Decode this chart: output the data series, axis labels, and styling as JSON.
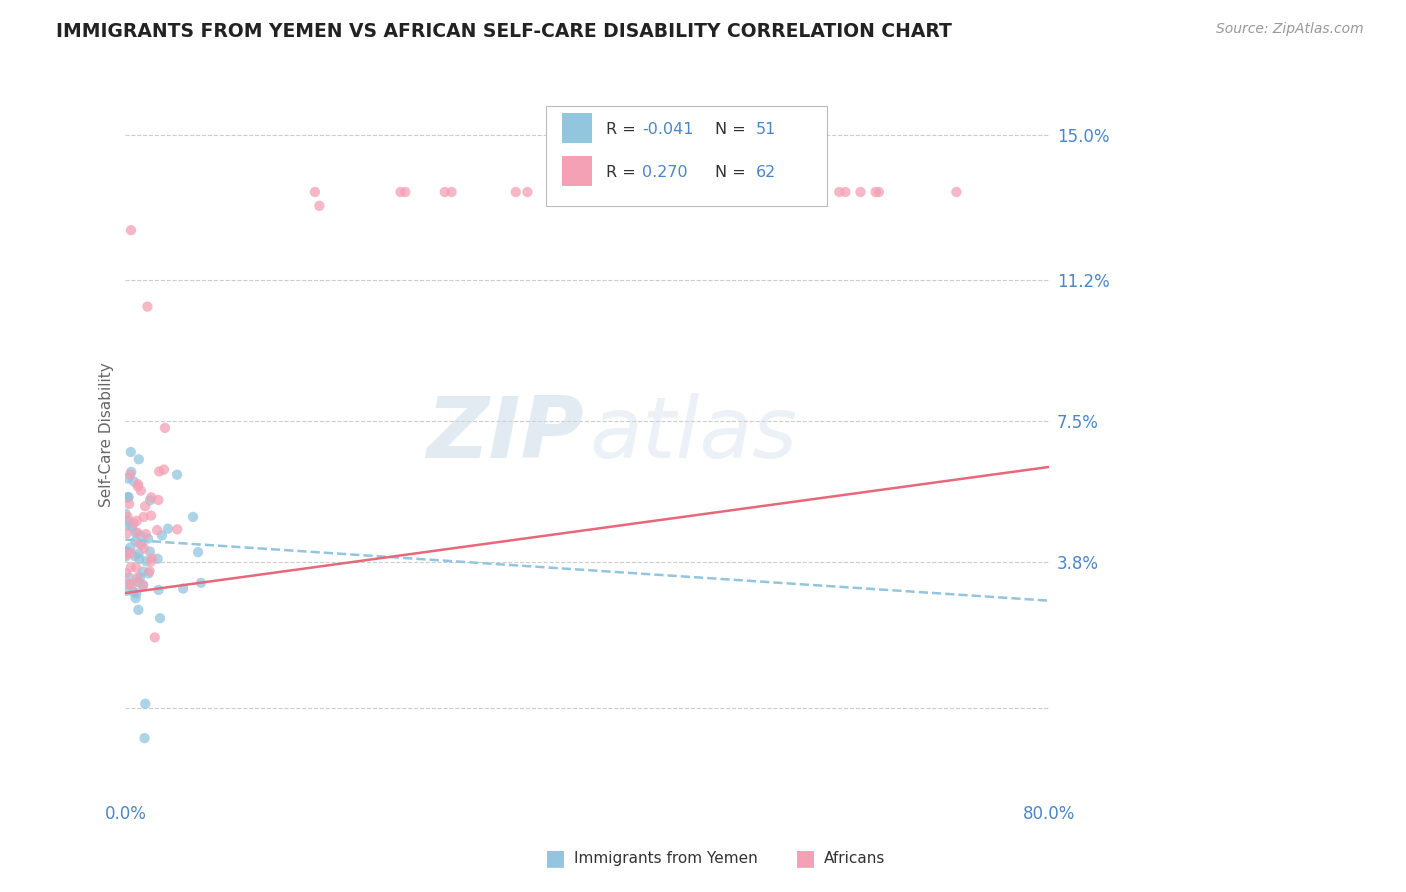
{
  "title": "IMMIGRANTS FROM YEMEN VS AFRICAN SELF-CARE DISABILITY CORRELATION CHART",
  "source": "Source: ZipAtlas.com",
  "ylabel": "Self-Care Disability",
  "xlim": [
    0.0,
    0.8
  ],
  "ylim": [
    -0.022,
    0.165
  ],
  "ytick_vals": [
    0.038,
    0.075,
    0.112,
    0.15
  ],
  "ytick_labels": [
    "3.8%",
    "7.5%",
    "11.2%",
    "15.0%"
  ],
  "background_color": "#ffffff",
  "title_color": "#222222",
  "axis_color": "#4a86c8",
  "watermark_zip": "ZIP",
  "watermark_atlas": "atlas",
  "color_blue": "#92c5de",
  "color_pink": "#f4a0b5",
  "trend_blue_color": "#92c5de",
  "trend_pink_color": "#e8687a",
  "R_blue": -0.041,
  "N_blue": 51,
  "R_pink": 0.27,
  "N_pink": 62,
  "trend_blue_x0": 0.0,
  "trend_blue_x1": 0.8,
  "trend_blue_y0": 0.044,
  "trend_blue_y1": 0.028,
  "trend_pink_x0": 0.0,
  "trend_pink_x1": 0.8,
  "trend_pink_y0": 0.03,
  "trend_pink_y1": 0.063
}
